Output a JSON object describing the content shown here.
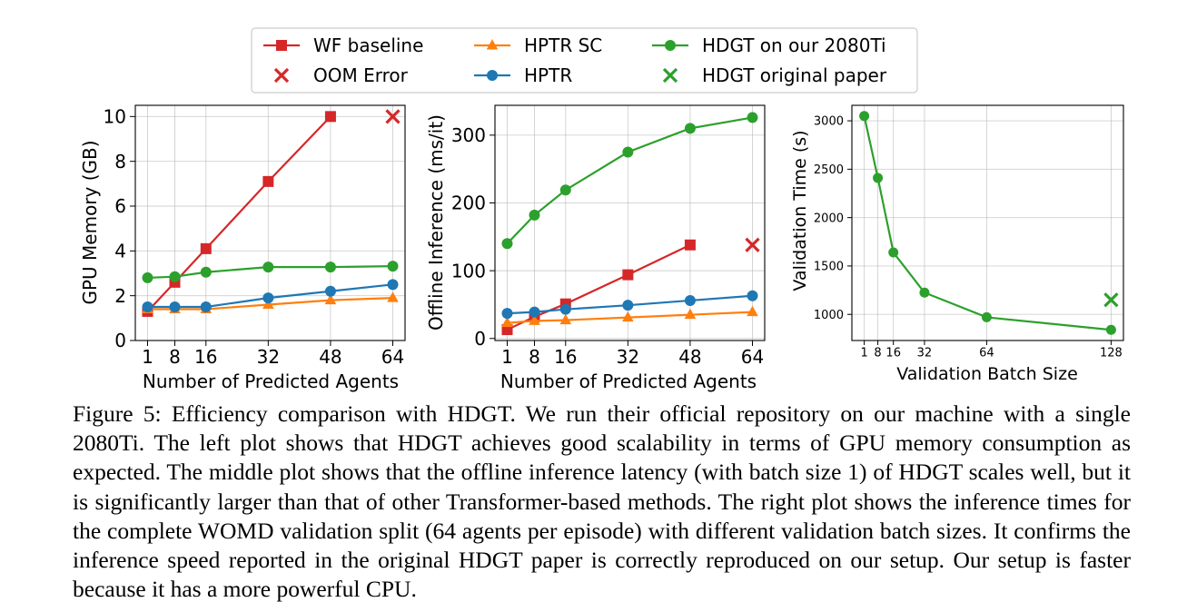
{
  "legend": {
    "entries": [
      {
        "label": "WF baseline",
        "color": "#d62728",
        "marker": "square",
        "line": true
      },
      {
        "label": "OOM Error",
        "color": "#d62728",
        "marker": "x",
        "line": false
      },
      {
        "label": "HPTR SC",
        "color": "#ff7f0e",
        "marker": "triangle",
        "line": true
      },
      {
        "label": "HPTR",
        "color": "#1f77b4",
        "marker": "circle",
        "line": true
      },
      {
        "label": "HDGT on our 2080Ti",
        "color": "#2ca02c",
        "marker": "circle",
        "line": true
      },
      {
        "label": "HDGT original paper",
        "color": "#2ca02c",
        "marker": "x",
        "line": false
      }
    ]
  },
  "chart_data": [
    {
      "type": "line",
      "xlabel": "Number of Predicted Agents",
      "ylabel": "GPU Memory (GB)",
      "xlim": [
        -2.15,
        67.15
      ],
      "ylim": [
        0,
        10.5
      ],
      "xticks": [
        1,
        8,
        16,
        32,
        48,
        64
      ],
      "yticks": [
        0,
        2,
        4,
        6,
        8,
        10
      ],
      "grid": true,
      "series": [
        {
          "name": "WF baseline",
          "color": "#d62728",
          "marker": "square",
          "x": [
            1,
            8,
            16,
            32,
            48
          ],
          "y": [
            1.3,
            2.6,
            4.1,
            7.1,
            10.0
          ]
        },
        {
          "name": "OOM Error",
          "color": "#d62728",
          "marker": "x",
          "x": [
            64
          ],
          "y": [
            10.0
          ]
        },
        {
          "name": "HPTR SC",
          "color": "#ff7f0e",
          "marker": "triangle",
          "x": [
            1,
            8,
            16,
            32,
            48,
            64
          ],
          "y": [
            1.4,
            1.4,
            1.4,
            1.6,
            1.8,
            1.9
          ]
        },
        {
          "name": "HPTR",
          "color": "#1f77b4",
          "marker": "circle",
          "x": [
            1,
            8,
            16,
            32,
            48,
            64
          ],
          "y": [
            1.5,
            1.5,
            1.5,
            1.9,
            2.2,
            2.5
          ]
        },
        {
          "name": "HDGT on our 2080Ti",
          "color": "#2ca02c",
          "marker": "circle",
          "x": [
            1,
            8,
            16,
            32,
            48,
            64
          ],
          "y": [
            2.8,
            2.85,
            3.05,
            3.28,
            3.28,
            3.32
          ]
        }
      ]
    },
    {
      "type": "line",
      "xlabel": "Number of Predicted Agents",
      "ylabel": "Offline Inference (ms/it)",
      "xlim": [
        -2.15,
        67.15
      ],
      "ylim": [
        -3,
        344
      ],
      "xticks": [
        1,
        8,
        16,
        32,
        48,
        64
      ],
      "yticks": [
        0,
        100,
        200,
        300
      ],
      "grid": true,
      "series": [
        {
          "name": "WF baseline",
          "color": "#d62728",
          "marker": "square",
          "x": [
            1,
            8,
            16,
            32,
            48
          ],
          "y": [
            13,
            32,
            51,
            94,
            138
          ]
        },
        {
          "name": "OOM Error",
          "color": "#d62728",
          "marker": "x",
          "x": [
            64
          ],
          "y": [
            138
          ]
        },
        {
          "name": "HPTR SC",
          "color": "#ff7f0e",
          "marker": "triangle",
          "x": [
            1,
            8,
            16,
            32,
            48,
            64
          ],
          "y": [
            23,
            26,
            27,
            31,
            35,
            39
          ]
        },
        {
          "name": "HPTR",
          "color": "#1f77b4",
          "marker": "circle",
          "x": [
            1,
            8,
            16,
            32,
            48,
            64
          ],
          "y": [
            37,
            39,
            43,
            49,
            56,
            63
          ]
        },
        {
          "name": "HDGT on our 2080Ti",
          "color": "#2ca02c",
          "marker": "circle",
          "x": [
            1,
            8,
            16,
            32,
            48,
            64
          ],
          "y": [
            140,
            182,
            219,
            275,
            310,
            326
          ]
        }
      ]
    },
    {
      "type": "line",
      "xlabel": "Validation Batch Size",
      "ylabel": "Validation Time (s)",
      "xlim": [
        -5.35,
        134.35
      ],
      "ylim": [
        730,
        3160
      ],
      "xticks": [
        1,
        8,
        16,
        32,
        64,
        128
      ],
      "yticks": [
        1000,
        1500,
        2000,
        2500,
        3000
      ],
      "grid": true,
      "series": [
        {
          "name": "HDGT on our 2080Ti",
          "color": "#2ca02c",
          "marker": "circle",
          "x": [
            1,
            8,
            16,
            32,
            64,
            128
          ],
          "y": [
            3050,
            2410,
            1640,
            1225,
            970,
            840
          ]
        },
        {
          "name": "HDGT original paper",
          "color": "#2ca02c",
          "marker": "x",
          "x": [
            128
          ],
          "y": [
            1150
          ]
        }
      ]
    }
  ],
  "caption": "Figure 5: Efficiency comparison with HDGT. We run their official repository on our machine with a single 2080Ti. The left plot shows that HDGT achieves good scalability in terms of GPU memory consumption as expected. The middle plot shows that the offline inference latency (with batch size 1) of HDGT scales well, but it is significantly larger than that of other Transformer-based methods. The right plot shows the inference times for the complete WOMD validation split (64 agents per episode) with different validation batch sizes. It confirms the inference speed reported in the original HDGT paper is correctly reproduced on our setup. Our setup is faster because it has a more powerful CPU."
}
